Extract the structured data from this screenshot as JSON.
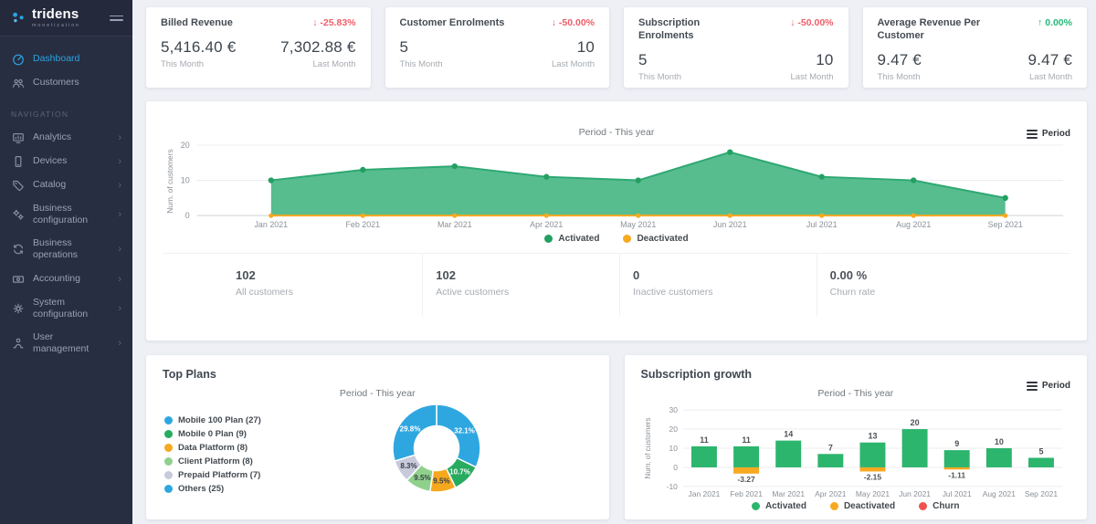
{
  "app": {
    "brand": "tridens",
    "brand_sub": "monetization"
  },
  "colors": {
    "accent_blue": "#2ba3e3",
    "negative_red": "#ef5e68",
    "positive_green": "#27b879",
    "sidebar_bg": "#272e41",
    "page_bg": "#eef0f5"
  },
  "sidebar": {
    "primary": [
      {
        "label": "Dashboard",
        "icon": "dashboard-icon",
        "active": true
      },
      {
        "label": "Customers",
        "icon": "customers-icon",
        "active": false
      }
    ],
    "section_label": "NAVIGATION",
    "nav": [
      {
        "label": "Analytics",
        "icon": "analytics-icon"
      },
      {
        "label": "Devices",
        "icon": "devices-icon"
      },
      {
        "label": "Catalog",
        "icon": "catalog-icon"
      },
      {
        "label": "Business configuration",
        "icon": "business-configuration-icon"
      },
      {
        "label": "Business operations",
        "icon": "business-operations-icon"
      },
      {
        "label": "Accounting",
        "icon": "accounting-icon"
      },
      {
        "label": "System configuration",
        "icon": "system-configuration-icon"
      },
      {
        "label": "User management",
        "icon": "user-management-icon"
      }
    ]
  },
  "kpi_cards": [
    {
      "title": "Billed Revenue",
      "direction": "down",
      "delta": "-25.83%",
      "delta_color": "#ef5e68",
      "this_value": "5,416.40 €",
      "this_label": "This Month",
      "last_value": "7,302.88 €",
      "last_label": "Last Month"
    },
    {
      "title": "Customer Enrolments",
      "direction": "down",
      "delta": "-50.00%",
      "delta_color": "#ef5e68",
      "this_value": "5",
      "this_label": "This Month",
      "last_value": "10",
      "last_label": "Last Month"
    },
    {
      "title": "Subscription Enrolments",
      "direction": "down",
      "delta": "-50.00%",
      "delta_color": "#ef5e68",
      "this_value": "5",
      "this_label": "This Month",
      "last_value": "10",
      "last_label": "Last Month"
    },
    {
      "title": "Average Revenue Per Customer",
      "direction": "up",
      "delta": "0.00%",
      "delta_color": "#27b879",
      "this_value": "9.47 €",
      "this_label": "This Month",
      "last_value": "9.47 €",
      "last_label": "Last Month"
    }
  ],
  "customers_panel": {
    "period_label": "Period - This year",
    "period_button": "Period",
    "stats": [
      {
        "value": "102",
        "label": "All customers"
      },
      {
        "value": "102",
        "label": "Active customers"
      },
      {
        "value": "0",
        "label": "Inactive customers"
      },
      {
        "value": "0.00 %",
        "label": "Churn rate"
      }
    ]
  },
  "top_plans_panel": {
    "title": "Top Plans",
    "period_label": "Period - This year"
  },
  "subscription_panel": {
    "title": "Subscription growth",
    "period_label": "Period - This year",
    "period_button": "Period"
  },
  "chart_data": [
    {
      "type": "area",
      "name": "customers-activation",
      "x": [
        "Jan 2021",
        "Feb 2021",
        "Mar 2021",
        "Apr 2021",
        "May 2021",
        "Jun 2021",
        "Jul 2021",
        "Aug 2021",
        "Sep 2021"
      ],
      "series": [
        {
          "name": "Activated",
          "color": "#2ea873",
          "fill": "#57bd8e",
          "point_color": "#23a061",
          "values": [
            10,
            13,
            14,
            11,
            10,
            18,
            11,
            10,
            5
          ]
        },
        {
          "name": "Deactivated",
          "color": "#f7a920",
          "values": [
            0,
            0,
            0,
            0,
            0,
            0,
            0,
            0,
            0
          ]
        }
      ],
      "ylabel": "Num. of customers",
      "yticks": [
        0,
        10,
        20
      ],
      "ylim": [
        0,
        20
      ],
      "grid": true,
      "legend_position": "bottom"
    },
    {
      "type": "pie",
      "name": "top-plans",
      "title": "Top Plans",
      "labels": [
        "Mobile 100 Plan (27)",
        "Mobile 0 Plan (9)",
        "Data Platform (8)",
        "Client Platform (8)",
        "Prepaid Platform (7)",
        "Others (25)"
      ],
      "values": [
        27,
        9,
        8,
        8,
        7,
        25
      ],
      "percent_labels": [
        "32.1%",
        "10.7%",
        "9.5%",
        "9.5%",
        "8.3%",
        "29.8%"
      ],
      "colors": [
        "#2ea7e0",
        "#27ab5f",
        "#f6a81e",
        "#8fd18c",
        "#c7cadb",
        "#2ea7e0"
      ],
      "label_text_colors": [
        "#ffffff",
        "#ffffff",
        "#3a3f45",
        "#3a3f45",
        "#3a3f45",
        "#ffffff"
      ],
      "legend_position": "left"
    },
    {
      "type": "bar",
      "name": "subscription-growth",
      "title": "Subscription growth",
      "categories": [
        "Jan 2021",
        "Feb 2021",
        "Mar 2021",
        "Apr 2021",
        "May 2021",
        "Jun 2021",
        "Jul 2021",
        "Aug 2021",
        "Sep 2021"
      ],
      "series": [
        {
          "name": "Activated",
          "color": "#2cb56d",
          "values": [
            11,
            11,
            14,
            7,
            13,
            20,
            9,
            10,
            5
          ]
        },
        {
          "name": "Deactivated",
          "color": "#f7a920",
          "values": [
            0,
            -3.27,
            0,
            0,
            -2.15,
            0,
            -1.11,
            0,
            0
          ]
        },
        {
          "name": "Churn",
          "color": "#ef5350",
          "values": [
            0,
            0,
            0,
            0,
            0,
            0,
            0,
            0,
            0
          ]
        }
      ],
      "ylabel": "Num. of customers",
      "yticks": [
        30,
        20,
        10,
        0,
        -10
      ],
      "ylim": [
        -10,
        30
      ],
      "grid": true,
      "legend_position": "bottom"
    }
  ]
}
